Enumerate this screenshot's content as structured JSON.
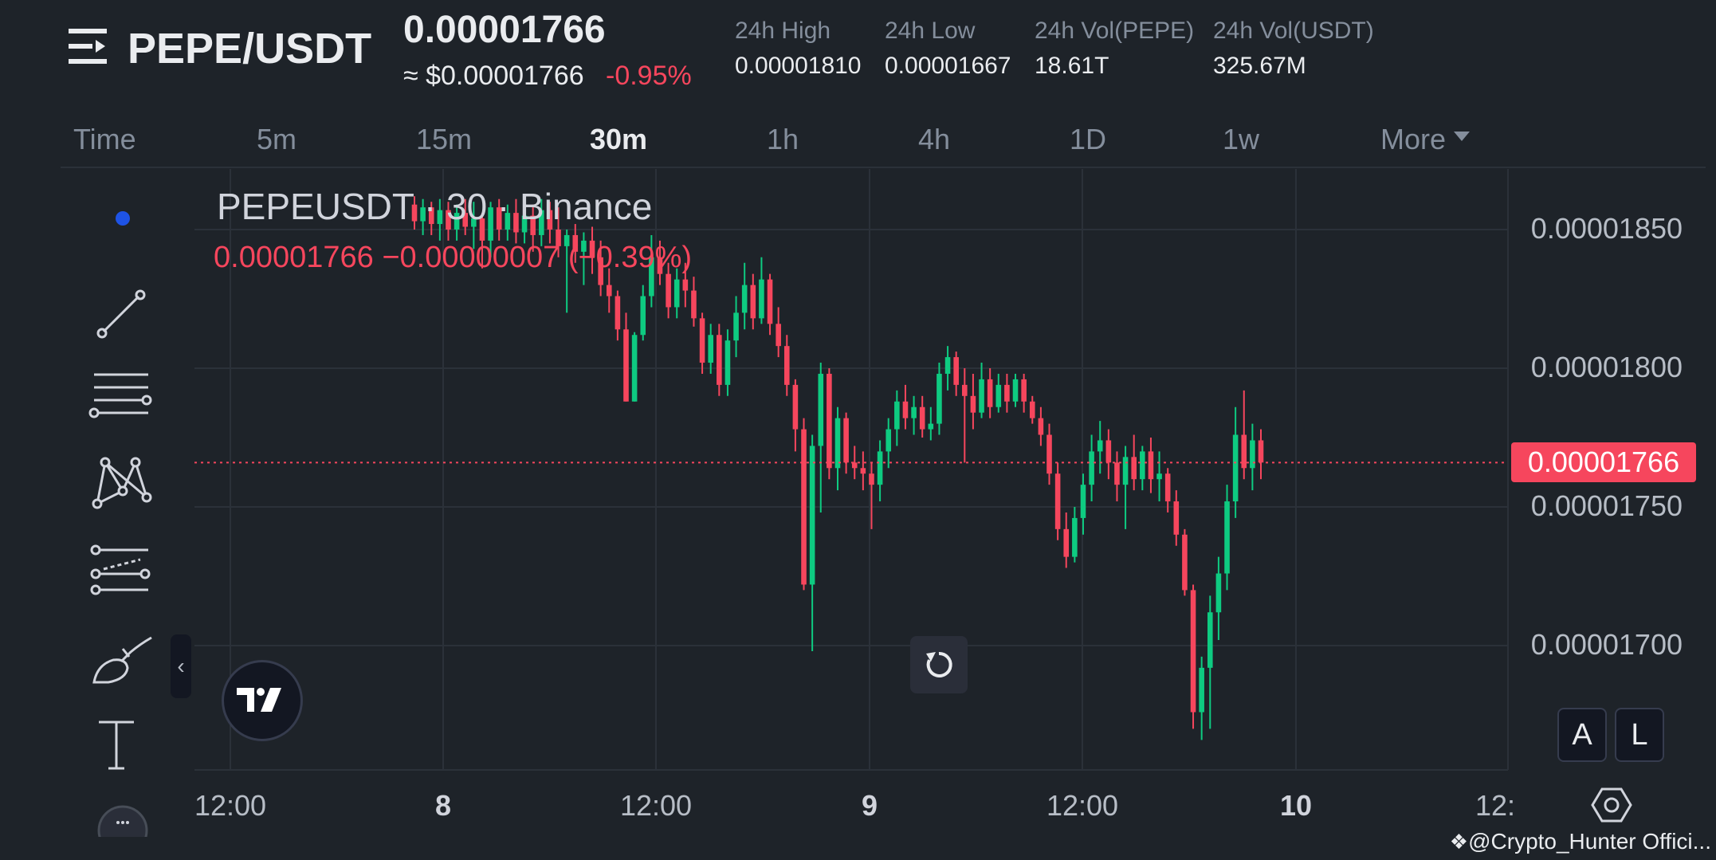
{
  "header": {
    "pair": "PEPE/USDT",
    "last_price": "0.00001766",
    "approx_usd": "≈ $0.00001766",
    "change_pct": "-0.95%",
    "stats": [
      {
        "label": "24h High",
        "value": "0.00001810"
      },
      {
        "label": "24h Low",
        "value": "0.00001667"
      },
      {
        "label": "24h Vol(PEPE)",
        "value": "18.61T"
      },
      {
        "label": "24h Vol(USDT)",
        "value": "325.67M"
      }
    ]
  },
  "timeframes": {
    "items": [
      "Time",
      "5m",
      "15m",
      "30m",
      "1h",
      "4h",
      "1D",
      "1w"
    ],
    "more": "More",
    "active": "30m"
  },
  "legend": {
    "title": "PEPEUSDT · 30 · Binance",
    "values": "0.00001766  −0.00000007 (−0.39%)"
  },
  "price_axis": {
    "labels": [
      "0.00001850",
      "0.00001800",
      "0.00001750",
      "0.00001700"
    ],
    "current_tag": "0.00001766"
  },
  "time_axis": {
    "labels": [
      "12:00",
      "8",
      "12:00",
      "9",
      "12:00",
      "10",
      "12:"
    ]
  },
  "buttons": {
    "auto": "A",
    "log": "L",
    "collapse": "‹"
  },
  "watermark": "@Crypto_Hunter Offici...",
  "colors": {
    "up": "#0ecb81",
    "down": "#f6465d",
    "bg": "#1e2329",
    "grid": "#2b3139",
    "active_dot": "#1e53e5"
  },
  "chart_data": {
    "type": "candlestick",
    "symbol": "PEPEUSDT",
    "interval": "30",
    "exchange": "Binance",
    "y_range": [
      1.658e-05,
      1.86e-05
    ],
    "last_close": 1.766e-05,
    "candles": [
      {
        "o": 1.859e-05,
        "h": 1.862e-05,
        "l": 1.85e-05,
        "c": 1.853e-05
      },
      {
        "o": 1.853e-05,
        "h": 1.861e-05,
        "l": 1.848e-05,
        "c": 1.858e-05
      },
      {
        "o": 1.858e-05,
        "h": 1.86e-05,
        "l": 1.848e-05,
        "c": 1.852e-05
      },
      {
        "o": 1.852e-05,
        "h": 1.861e-05,
        "l": 1.846e-05,
        "c": 1.857e-05
      },
      {
        "o": 1.857e-05,
        "h": 1.86e-05,
        "l": 1.846e-05,
        "c": 1.85e-05
      },
      {
        "o": 1.85e-05,
        "h": 1.859e-05,
        "l": 1.846e-05,
        "c": 1.856e-05
      },
      {
        "o": 1.856e-05,
        "h": 1.861e-05,
        "l": 1.848e-05,
        "c": 1.851e-05
      },
      {
        "o": 1.851e-05,
        "h": 1.86e-05,
        "l": 1.843e-05,
        "c": 1.854e-05
      },
      {
        "o": 1.854e-05,
        "h": 1.856e-05,
        "l": 1.836e-05,
        "c": 1.846e-05
      },
      {
        "o": 1.846e-05,
        "h": 1.86e-05,
        "l": 1.84e-05,
        "c": 1.858e-05
      },
      {
        "o": 1.858e-05,
        "h": 1.861e-05,
        "l": 1.846e-05,
        "c": 1.85e-05
      },
      {
        "o": 1.85e-05,
        "h": 1.859e-05,
        "l": 1.846e-05,
        "c": 1.856e-05
      },
      {
        "o": 1.856e-05,
        "h": 1.861e-05,
        "l": 1.845e-05,
        "c": 1.849e-05
      },
      {
        "o": 1.849e-05,
        "h": 1.86e-05,
        "l": 1.845e-05,
        "c": 1.855e-05
      },
      {
        "o": 1.855e-05,
        "h": 1.859e-05,
        "l": 1.842e-05,
        "c": 1.848e-05
      },
      {
        "o": 1.848e-05,
        "h": 1.861e-05,
        "l": 1.844e-05,
        "c": 1.857e-05
      },
      {
        "o": 1.857e-05,
        "h": 1.86e-05,
        "l": 1.845e-05,
        "c": 1.85e-05
      },
      {
        "o": 1.85e-05,
        "h": 1.858e-05,
        "l": 1.84e-05,
        "c": 1.844e-05
      },
      {
        "o": 1.844e-05,
        "h": 1.85e-05,
        "l": 1.82e-05,
        "c": 1.848e-05
      },
      {
        "o": 1.848e-05,
        "h": 1.852e-05,
        "l": 1.838e-05,
        "c": 1.842e-05
      },
      {
        "o": 1.842e-05,
        "h": 1.849e-05,
        "l": 1.83e-05,
        "c": 1.846e-05
      },
      {
        "o": 1.846e-05,
        "h": 1.851e-05,
        "l": 1.834e-05,
        "c": 1.84e-05
      },
      {
        "o": 1.84e-05,
        "h": 1.846e-05,
        "l": 1.826e-05,
        "c": 1.83e-05
      },
      {
        "o": 1.83e-05,
        "h": 1.836e-05,
        "l": 1.82e-05,
        "c": 1.826e-05
      },
      {
        "o": 1.826e-05,
        "h": 1.828e-05,
        "l": 1.81e-05,
        "c": 1.814e-05
      },
      {
        "o": 1.814e-05,
        "h": 1.82e-05,
        "l": 1.788e-05,
        "c": 1.788e-05
      },
      {
        "o": 1.788e-05,
        "h": 1.813e-05,
        "l": 1.788e-05,
        "c": 1.812e-05
      },
      {
        "o": 1.812e-05,
        "h": 1.83e-05,
        "l": 1.81e-05,
        "c": 1.826e-05
      },
      {
        "o": 1.826e-05,
        "h": 1.848e-05,
        "l": 1.822e-05,
        "c": 1.84e-05
      },
      {
        "o": 1.84e-05,
        "h": 1.846e-05,
        "l": 1.83e-05,
        "c": 1.834e-05
      },
      {
        "o": 1.834e-05,
        "h": 1.838e-05,
        "l": 1.818e-05,
        "c": 1.822e-05
      },
      {
        "o": 1.822e-05,
        "h": 1.836e-05,
        "l": 1.818e-05,
        "c": 1.832e-05
      },
      {
        "o": 1.832e-05,
        "h": 1.838e-05,
        "l": 1.822e-05,
        "c": 1.828e-05
      },
      {
        "o": 1.828e-05,
        "h": 1.833e-05,
        "l": 1.815e-05,
        "c": 1.818e-05
      },
      {
        "o": 1.818e-05,
        "h": 1.82e-05,
        "l": 1.798e-05,
        "c": 1.802e-05
      },
      {
        "o": 1.802e-05,
        "h": 1.816e-05,
        "l": 1.798e-05,
        "c": 1.812e-05
      },
      {
        "o": 1.812e-05,
        "h": 1.816e-05,
        "l": 1.79e-05,
        "c": 1.794e-05
      },
      {
        "o": 1.794e-05,
        "h": 1.814e-05,
        "l": 1.79e-05,
        "c": 1.81e-05
      },
      {
        "o": 1.81e-05,
        "h": 1.826e-05,
        "l": 1.804e-05,
        "c": 1.82e-05
      },
      {
        "o": 1.82e-05,
        "h": 1.838e-05,
        "l": 1.814e-05,
        "c": 1.83e-05
      },
      {
        "o": 1.83e-05,
        "h": 1.834e-05,
        "l": 1.814e-05,
        "c": 1.818e-05
      },
      {
        "o": 1.818e-05,
        "h": 1.84e-05,
        "l": 1.816e-05,
        "c": 1.832e-05
      },
      {
        "o": 1.832e-05,
        "h": 1.834e-05,
        "l": 1.812e-05,
        "c": 1.816e-05
      },
      {
        "o": 1.816e-05,
        "h": 1.822e-05,
        "l": 1.804e-05,
        "c": 1.808e-05
      },
      {
        "o": 1.808e-05,
        "h": 1.812e-05,
        "l": 1.79e-05,
        "c": 1.794e-05
      },
      {
        "o": 1.794e-05,
        "h": 1.796e-05,
        "l": 1.77e-05,
        "c": 1.778e-05
      },
      {
        "o": 1.778e-05,
        "h": 1.782e-05,
        "l": 1.72e-05,
        "c": 1.722e-05
      },
      {
        "o": 1.722e-05,
        "h": 1.776e-05,
        "l": 1.698e-05,
        "c": 1.772e-05
      },
      {
        "o": 1.772e-05,
        "h": 1.802e-05,
        "l": 1.748e-05,
        "c": 1.798e-05
      },
      {
        "o": 1.798e-05,
        "h": 1.8e-05,
        "l": 1.76e-05,
        "c": 1.764e-05
      },
      {
        "o": 1.764e-05,
        "h": 1.786e-05,
        "l": 1.756e-05,
        "c": 1.782e-05
      },
      {
        "o": 1.782e-05,
        "h": 1.784e-05,
        "l": 1.762e-05,
        "c": 1.766e-05
      },
      {
        "o": 1.766e-05,
        "h": 1.772e-05,
        "l": 1.76e-05,
        "c": 1.764e-05
      },
      {
        "o": 1.764e-05,
        "h": 1.77e-05,
        "l": 1.756e-05,
        "c": 1.762e-05
      },
      {
        "o": 1.762e-05,
        "h": 1.766e-05,
        "l": 1.742e-05,
        "c": 1.758e-05
      },
      {
        "o": 1.758e-05,
        "h": 1.774e-05,
        "l": 1.752e-05,
        "c": 1.77e-05
      },
      {
        "o": 1.77e-05,
        "h": 1.782e-05,
        "l": 1.764e-05,
        "c": 1.778e-05
      },
      {
        "o": 1.778e-05,
        "h": 1.792e-05,
        "l": 1.772e-05,
        "c": 1.788e-05
      },
      {
        "o": 1.788e-05,
        "h": 1.794e-05,
        "l": 1.778e-05,
        "c": 1.782e-05
      },
      {
        "o": 1.782e-05,
        "h": 1.79e-05,
        "l": 1.776e-05,
        "c": 1.786e-05
      },
      {
        "o": 1.786e-05,
        "h": 1.79e-05,
        "l": 1.775e-05,
        "c": 1.778e-05
      },
      {
        "o": 1.778e-05,
        "h": 1.786e-05,
        "l": 1.774e-05,
        "c": 1.78e-05
      },
      {
        "o": 1.78e-05,
        "h": 1.802e-05,
        "l": 1.776e-05,
        "c": 1.798e-05
      },
      {
        "o": 1.798e-05,
        "h": 1.808e-05,
        "l": 1.792e-05,
        "c": 1.804e-05
      },
      {
        "o": 1.804e-05,
        "h": 1.806e-05,
        "l": 1.79e-05,
        "c": 1.794e-05
      },
      {
        "o": 1.794e-05,
        "h": 1.8e-05,
        "l": 1.766e-05,
        "c": 1.79e-05
      },
      {
        "o": 1.79e-05,
        "h": 1.798e-05,
        "l": 1.778e-05,
        "c": 1.784e-05
      },
      {
        "o": 1.784e-05,
        "h": 1.802e-05,
        "l": 1.782e-05,
        "c": 1.796e-05
      },
      {
        "o": 1.796e-05,
        "h": 1.8e-05,
        "l": 1.782e-05,
        "c": 1.786e-05
      },
      {
        "o": 1.786e-05,
        "h": 1.798e-05,
        "l": 1.784e-05,
        "c": 1.794e-05
      },
      {
        "o": 1.794e-05,
        "h": 1.798e-05,
        "l": 1.784e-05,
        "c": 1.788e-05
      },
      {
        "o": 1.788e-05,
        "h": 1.798e-05,
        "l": 1.786e-05,
        "c": 1.796e-05
      },
      {
        "o": 1.796e-05,
        "h": 1.798e-05,
        "l": 1.784e-05,
        "c": 1.788e-05
      },
      {
        "o": 1.788e-05,
        "h": 1.79e-05,
        "l": 1.78e-05,
        "c": 1.782e-05
      },
      {
        "o": 1.782e-05,
        "h": 1.786e-05,
        "l": 1.772e-05,
        "c": 1.776e-05
      },
      {
        "o": 1.776e-05,
        "h": 1.78e-05,
        "l": 1.758e-05,
        "c": 1.762e-05
      },
      {
        "o": 1.762e-05,
        "h": 1.766e-05,
        "l": 1.738e-05,
        "c": 1.742e-05
      },
      {
        "o": 1.742e-05,
        "h": 1.748e-05,
        "l": 1.728e-05,
        "c": 1.732e-05
      },
      {
        "o": 1.732e-05,
        "h": 1.75e-05,
        "l": 1.73e-05,
        "c": 1.746e-05
      },
      {
        "o": 1.746e-05,
        "h": 1.762e-05,
        "l": 1.74e-05,
        "c": 1.758e-05
      },
      {
        "o": 1.758e-05,
        "h": 1.776e-05,
        "l": 1.752e-05,
        "c": 1.77e-05
      },
      {
        "o": 1.77e-05,
        "h": 1.781e-05,
        "l": 1.762e-05,
        "c": 1.774e-05
      },
      {
        "o": 1.774e-05,
        "h": 1.778e-05,
        "l": 1.76e-05,
        "c": 1.766e-05
      },
      {
        "o": 1.766e-05,
        "h": 1.77e-05,
        "l": 1.752e-05,
        "c": 1.758e-05
      },
      {
        "o": 1.758e-05,
        "h": 1.772e-05,
        "l": 1.742e-05,
        "c": 1.768e-05
      },
      {
        "o": 1.768e-05,
        "h": 1.776e-05,
        "l": 1.756e-05,
        "c": 1.76e-05
      },
      {
        "o": 1.76e-05,
        "h": 1.772e-05,
        "l": 1.756e-05,
        "c": 1.77e-05
      },
      {
        "o": 1.77e-05,
        "h": 1.775e-05,
        "l": 1.755e-05,
        "c": 1.76e-05
      },
      {
        "o": 1.76e-05,
        "h": 1.77e-05,
        "l": 1.752e-05,
        "c": 1.762e-05
      },
      {
        "o": 1.762e-05,
        "h": 1.764e-05,
        "l": 1.748e-05,
        "c": 1.752e-05
      },
      {
        "o": 1.752e-05,
        "h": 1.756e-05,
        "l": 1.736e-05,
        "c": 1.74e-05
      },
      {
        "o": 1.74e-05,
        "h": 1.742e-05,
        "l": 1.718e-05,
        "c": 1.72e-05
      },
      {
        "o": 1.72e-05,
        "h": 1.722e-05,
        "l": 1.67e-05,
        "c": 1.676e-05
      },
      {
        "o": 1.676e-05,
        "h": 1.696e-05,
        "l": 1.666e-05,
        "c": 1.692e-05
      },
      {
        "o": 1.692e-05,
        "h": 1.718e-05,
        "l": 1.67e-05,
        "c": 1.712e-05
      },
      {
        "o": 1.712e-05,
        "h": 1.732e-05,
        "l": 1.702e-05,
        "c": 1.726e-05
      },
      {
        "o": 1.726e-05,
        "h": 1.758e-05,
        "l": 1.72e-05,
        "c": 1.752e-05
      },
      {
        "o": 1.752e-05,
        "h": 1.786e-05,
        "l": 1.746e-05,
        "c": 1.776e-05
      },
      {
        "o": 1.776e-05,
        "h": 1.792e-05,
        "l": 1.76e-05,
        "c": 1.764e-05
      },
      {
        "o": 1.764e-05,
        "h": 1.78e-05,
        "l": 1.756e-05,
        "c": 1.774e-05
      },
      {
        "o": 1.774e-05,
        "h": 1.778e-05,
        "l": 1.76e-05,
        "c": 1.766e-05
      }
    ]
  }
}
